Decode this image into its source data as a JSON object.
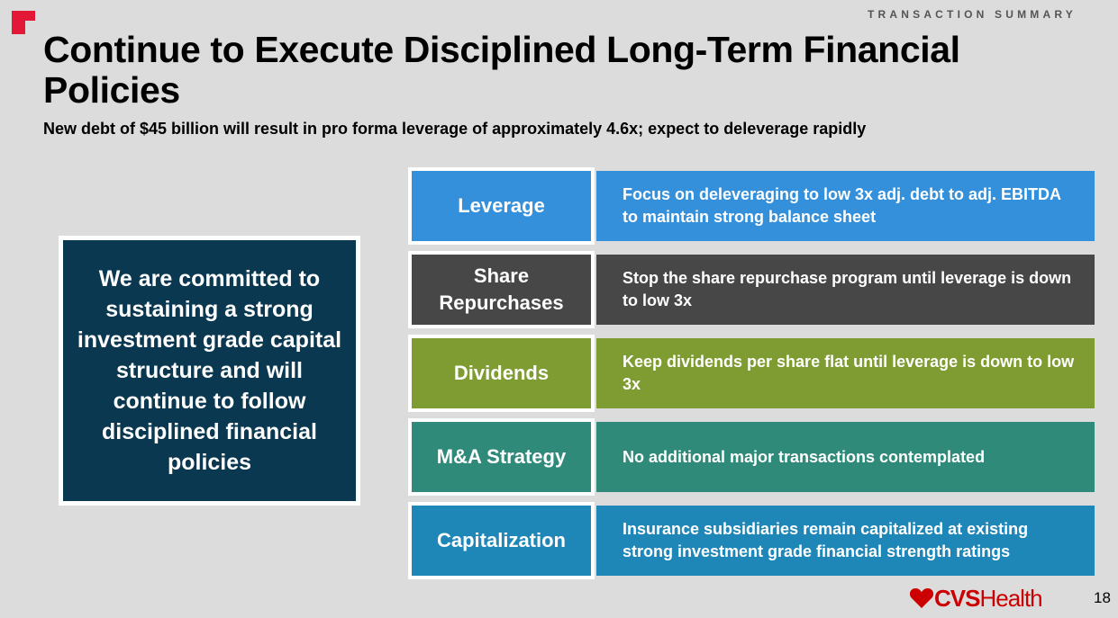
{
  "header": {
    "section_label": "TRANSACTION SUMMARY",
    "title": "Continue to Execute Disciplined Long-Term Financial Policies",
    "subtitle": "New debt of $45 billion will result in pro forma leverage of approximately 4.6x; expect to deleverage rapidly"
  },
  "commitment": {
    "text": "We are committed to sustaining a strong investment grade capital structure and will continue to follow disciplined financial policies"
  },
  "policies": [
    {
      "label": "Leverage",
      "description": "Focus on deleveraging to low 3x adj. debt to adj. EBITDA to maintain strong balance sheet",
      "color": "#3490db"
    },
    {
      "label": "Share Repurchases",
      "description": "Stop the share repurchase program until leverage is down to low 3x",
      "color": "#474747"
    },
    {
      "label": "Dividends",
      "description": "Keep dividends per share flat until leverage is down to low 3x",
      "color": "#7e9c31"
    },
    {
      "label": "M&A Strategy",
      "description": "No additional major transactions contemplated",
      "color": "#2f8a79"
    },
    {
      "label": "Capitalization",
      "description": "Insurance subsidiaries remain capitalized at existing strong investment grade financial strength ratings",
      "color": "#1f86b8"
    }
  ],
  "footer": {
    "brand_cvs": "CVS",
    "brand_health": "Health",
    "page_number": "18",
    "brand_color": "#cc0000"
  }
}
